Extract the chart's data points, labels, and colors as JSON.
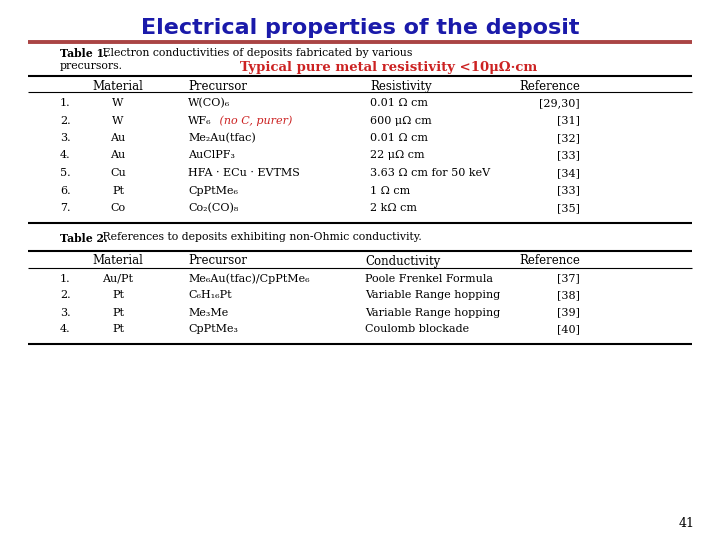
{
  "title": "Electrical properties of the deposit",
  "title_color": "#1a1aaa",
  "title_fontsize": 16,
  "bg_color": "#ffffff",
  "separator_color": "#aa4444",
  "slide_number": "41",
  "table1_caption_bold": "Table 1.",
  "table1_caption_rest": "   Electron conductivities of deposits fabricated by various\n             precursors.",
  "table1_highlight": "Typical pure metal resistivity <10μΩ·cm",
  "table1_highlight_color": "#cc2222",
  "table1_headers": [
    "",
    "Material",
    "Precursor",
    "Resistivity",
    "Reference"
  ],
  "table1_rows": [
    [
      "1.",
      "W",
      "W(CO)₆",
      "0.01 Ω cm",
      "[29,30]"
    ],
    [
      "2.",
      "W",
      "WF₆ (no C, purer)",
      "600 μΩ cm",
      "[31]"
    ],
    [
      "3.",
      "Au",
      "Me₂Au(tfac)",
      "0.01 Ω cm",
      "[32]"
    ],
    [
      "4.",
      "Au",
      "AuClPF₃",
      "22 μΩ cm",
      "[33]"
    ],
    [
      "5.",
      "Cu",
      "HFA · ECu · EVTMS",
      "3.63 Ω cm for 50 keV",
      "[34]"
    ],
    [
      "6.",
      "Pt",
      "CpPtMe₆",
      "1 Ω cm",
      "[33]"
    ],
    [
      "7.",
      "Co",
      "Co₂(CO)₈",
      "2 kΩ cm",
      "[35]"
    ]
  ],
  "table2_caption_bold": "Table 2.",
  "table2_caption_rest": "   References to deposits exhibiting non-Ohmic conductivity.",
  "table2_headers": [
    "",
    "Material",
    "Precursor",
    "Conductivity",
    "Reference"
  ],
  "table2_rows": [
    [
      "1.",
      "Au/Pt",
      "Me₆Au(tfac)/CpPtMe₆",
      "Poole Frenkel Formula",
      "[37]"
    ],
    [
      "2.",
      "Pt",
      "C₆H₁₆Pt",
      "Variable Range hopping",
      "[38]"
    ],
    [
      "3.",
      "Pt",
      "Me₃Me",
      "Variable Range hopping",
      "[39]"
    ],
    [
      "4.",
      "Pt",
      "CpPtMe₃",
      "Coulomb blockade",
      "[40]"
    ]
  ],
  "col_x1": [
    60,
    118,
    188,
    370,
    580
  ],
  "col_x2": [
    60,
    118,
    188,
    365,
    580
  ],
  "aligns1": [
    "left",
    "center",
    "left",
    "left",
    "right"
  ],
  "aligns2": [
    "left",
    "center",
    "left",
    "left",
    "right"
  ]
}
